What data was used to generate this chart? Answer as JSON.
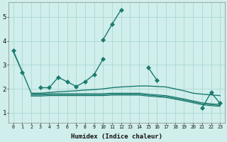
{
  "x": [
    0,
    1,
    2,
    3,
    4,
    5,
    6,
    7,
    8,
    9,
    10,
    11,
    12,
    13,
    14,
    15,
    16,
    17,
    18,
    19,
    20,
    21,
    22,
    23
  ],
  "line1": [
    3.6,
    2.7,
    null,
    null,
    null,
    null,
    null,
    null,
    null,
    null,
    4.05,
    4.7,
    5.3,
    null,
    null,
    2.9,
    2.35,
    null,
    null,
    null,
    null,
    null,
    null,
    null
  ],
  "line2": [
    null,
    null,
    null,
    2.05,
    2.05,
    2.48,
    2.3,
    2.1,
    2.3,
    2.6,
    3.25,
    null,
    null,
    null,
    null,
    null,
    null,
    null,
    null,
    null,
    null,
    null,
    null,
    null
  ],
  "line3": [
    null,
    null,
    null,
    null,
    null,
    null,
    null,
    null,
    null,
    null,
    null,
    null,
    null,
    null,
    null,
    null,
    null,
    null,
    null,
    null,
    null,
    1.2,
    1.85,
    1.4
  ],
  "line4": [
    3.55,
    2.72,
    1.82,
    1.82,
    1.85,
    1.88,
    1.9,
    1.92,
    1.95,
    1.97,
    2.0,
    2.05,
    2.08,
    2.1,
    2.12,
    2.12,
    2.1,
    2.08,
    2.0,
    1.92,
    1.82,
    1.78,
    1.75,
    1.72
  ],
  "line5": [
    null,
    null,
    1.78,
    1.78,
    1.8,
    1.8,
    1.8,
    1.8,
    1.8,
    1.8,
    1.8,
    1.82,
    1.82,
    1.82,
    1.82,
    1.78,
    1.75,
    1.72,
    1.65,
    1.58,
    1.5,
    1.42,
    1.38,
    1.35
  ],
  "line6": [
    null,
    null,
    1.74,
    1.74,
    1.76,
    1.76,
    1.76,
    1.76,
    1.76,
    1.76,
    1.76,
    1.78,
    1.78,
    1.78,
    1.78,
    1.74,
    1.71,
    1.68,
    1.61,
    1.54,
    1.46,
    1.38,
    1.34,
    1.31
  ],
  "line7": [
    null,
    null,
    1.7,
    1.7,
    1.72,
    1.72,
    1.72,
    1.72,
    1.72,
    1.72,
    1.72,
    1.74,
    1.74,
    1.74,
    1.74,
    1.7,
    1.67,
    1.64,
    1.57,
    1.5,
    1.42,
    1.34,
    1.3,
    1.27
  ],
  "color": "#1a7a6e",
  "bg_color": "#d0eeeb",
  "grid_color": "#aad8d3",
  "xlabel": "Humidex (Indice chaleur)",
  "xlim": [
    -0.5,
    23.5
  ],
  "ylim": [
    0.6,
    5.6
  ],
  "yticks": [
    1,
    2,
    3,
    4,
    5
  ],
  "xticks": [
    0,
    1,
    2,
    3,
    4,
    5,
    6,
    7,
    8,
    9,
    10,
    11,
    12,
    13,
    14,
    15,
    16,
    17,
    18,
    19,
    20,
    21,
    22,
    23
  ],
  "marker": "D",
  "markersize": 3.0,
  "linewidth": 1.0
}
